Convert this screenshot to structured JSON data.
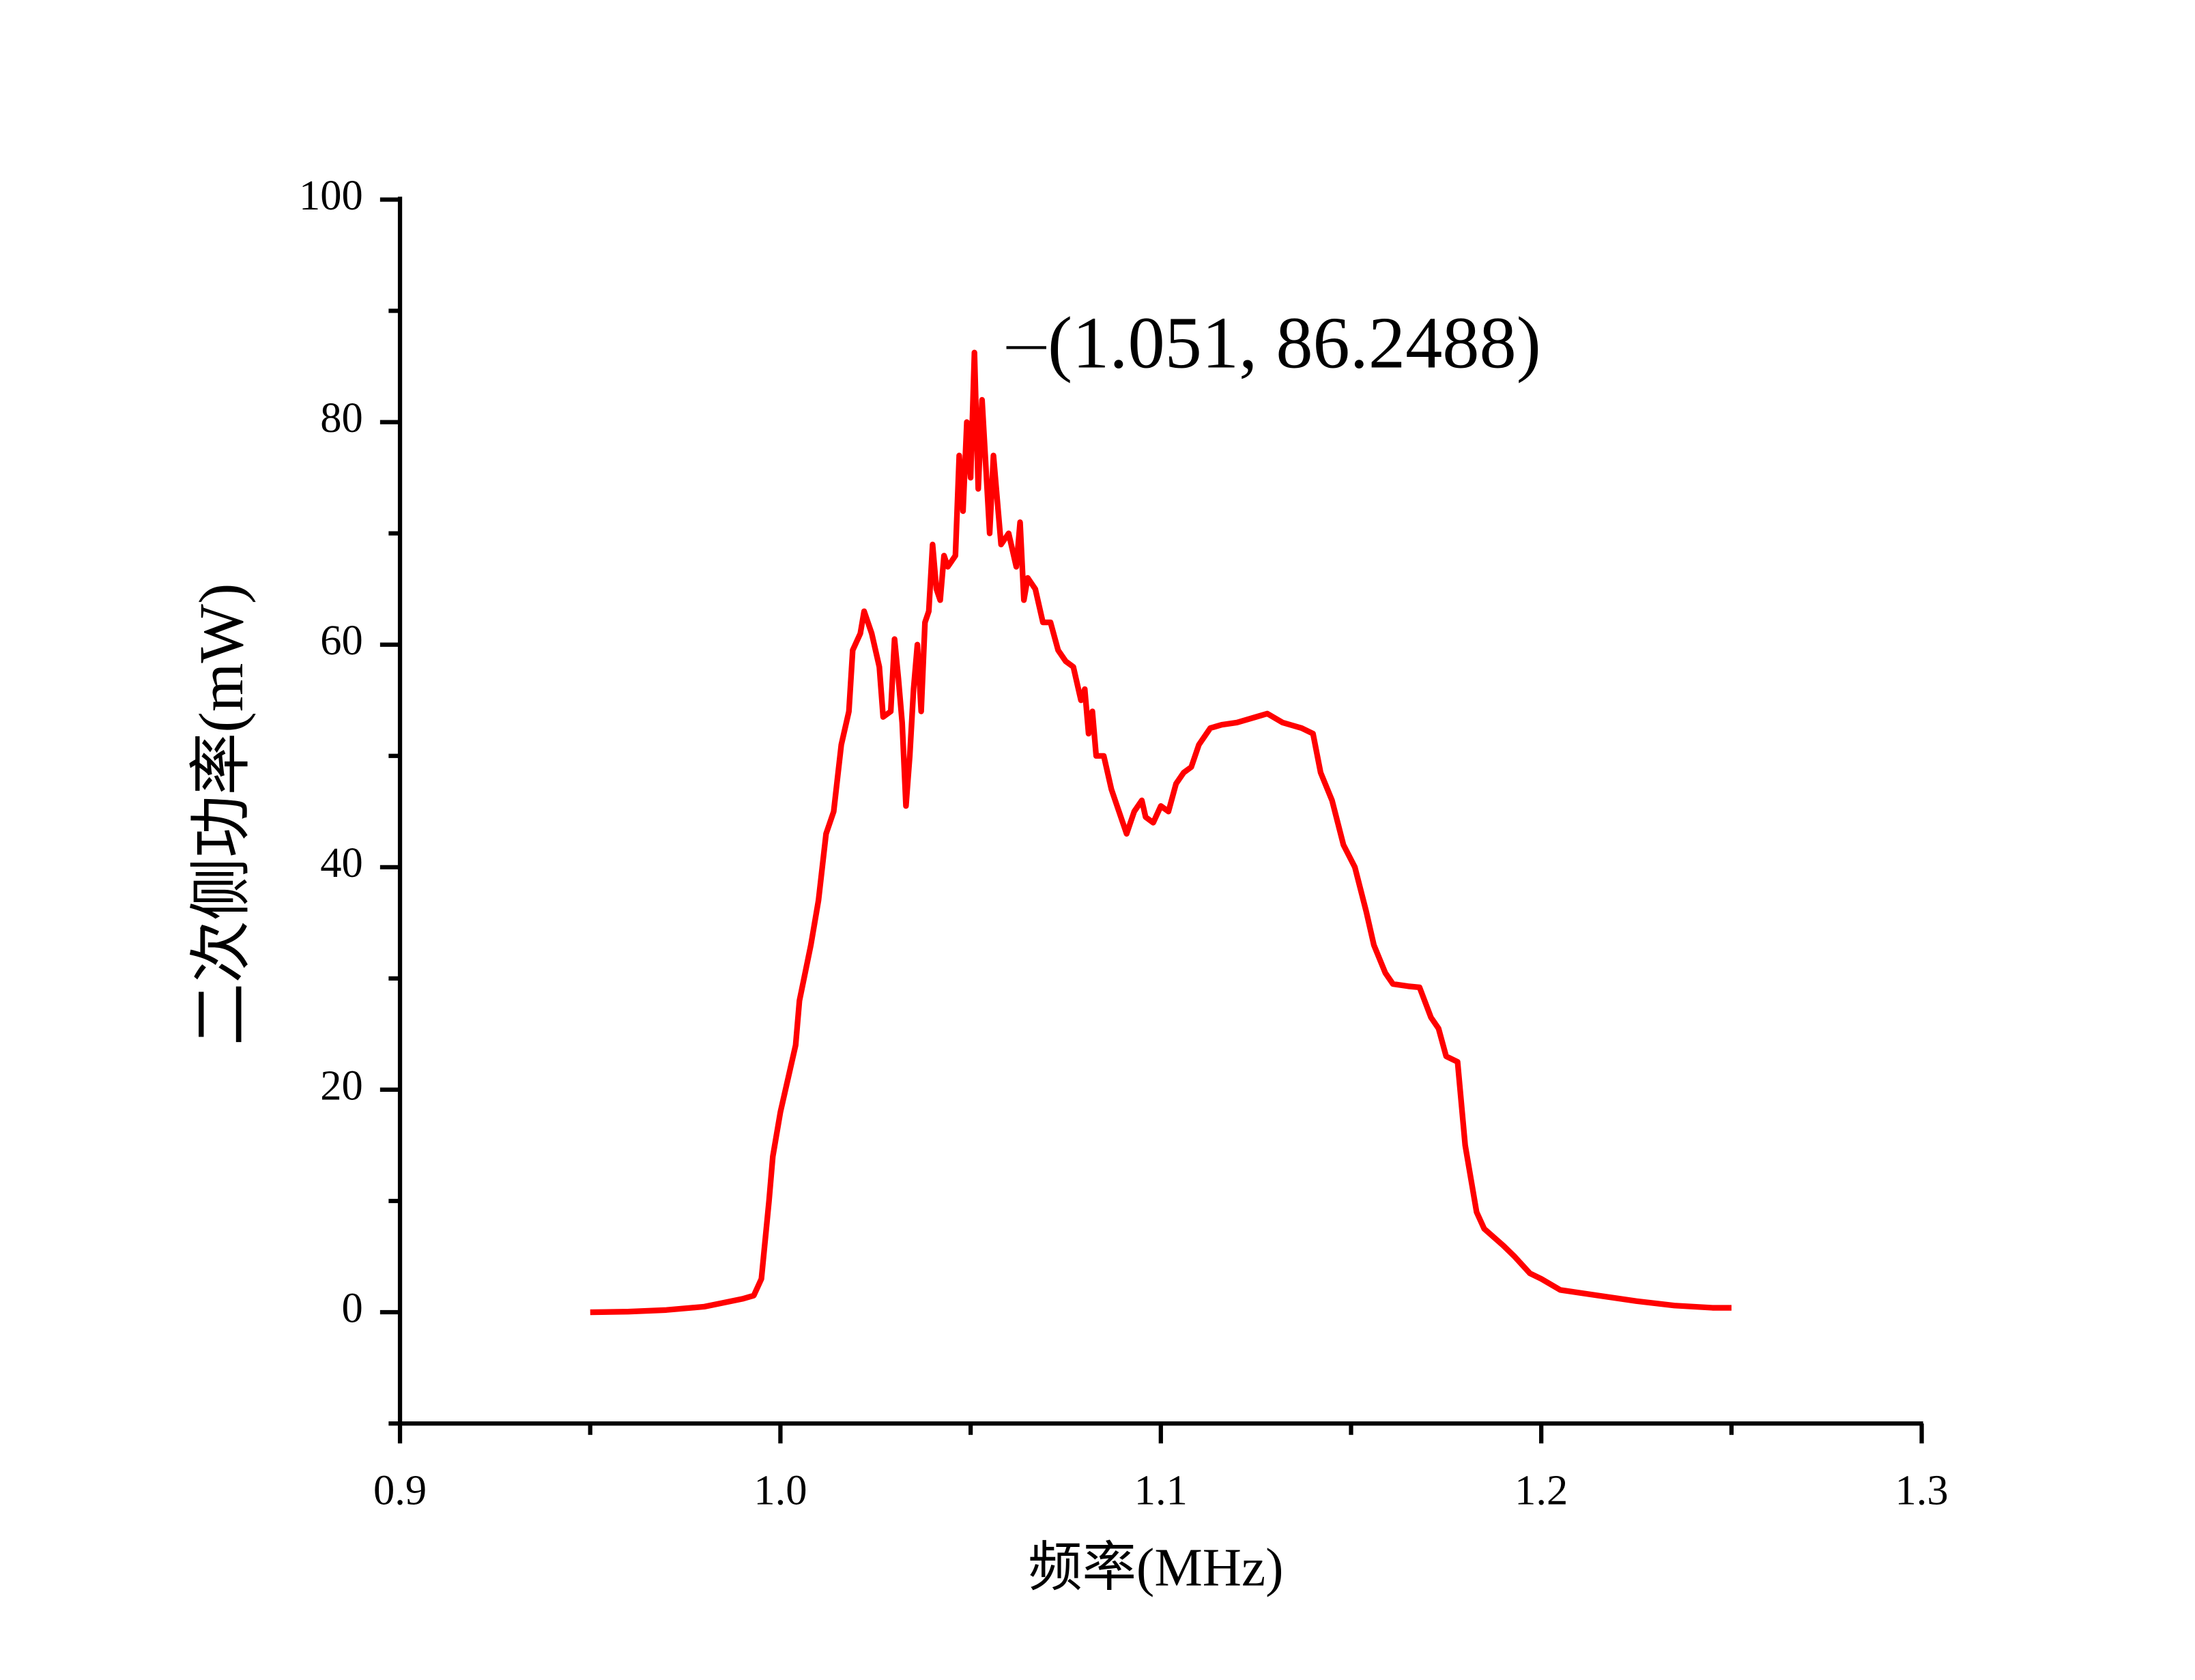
{
  "chart_data": {
    "type": "line",
    "x_label": "频率(MHz)",
    "y_label": "二次侧功率(mW)",
    "annotation": "(1.051, 86.2488)",
    "xlim": [
      0.9,
      1.3
    ],
    "ylim": [
      -10,
      100
    ],
    "xticks": [
      0.9,
      {
        "value": 1,
        "label": "1.0"
      },
      1.1,
      1.2,
      1.3
    ],
    "yticks": [
      0,
      20,
      40,
      60,
      80,
      100
    ],
    "x_minor_ticks": [
      0.95,
      1.05,
      1.15,
      1.25
    ],
    "y_minor_ticks": [
      -10,
      10,
      30,
      50,
      70,
      90
    ],
    "series": [
      {
        "color": "#ff0000",
        "x": [
          0.95,
          0.96,
          0.97,
          0.98,
          0.99,
          0.993,
          0.995,
          0.997,
          0.998,
          1.0,
          1.004,
          1.005,
          1.008,
          1.01,
          1.012,
          1.014,
          1.016,
          1.018,
          1.019,
          1.021,
          1.022,
          1.024,
          1.026,
          1.027,
          1.029,
          1.03,
          1.031,
          1.032,
          1.033,
          1.034,
          1.035,
          1.036,
          1.037,
          1.038,
          1.039,
          1.04,
          1.041,
          1.042,
          1.043,
          1.044,
          1.046,
          1.047,
          1.048,
          1.049,
          1.05,
          1.051,
          1.052,
          1.053,
          1.054,
          1.055,
          1.056,
          1.057,
          1.058,
          1.06,
          1.062,
          1.063,
          1.064,
          1.065,
          1.067,
          1.069,
          1.071,
          1.073,
          1.075,
          1.077,
          1.079,
          1.08,
          1.081,
          1.082,
          1.083,
          1.085,
          1.087,
          1.089,
          1.091,
          1.093,
          1.095,
          1.096,
          1.098,
          1.1,
          1.102,
          1.104,
          1.106,
          1.108,
          1.11,
          1.113,
          1.116,
          1.12,
          1.125,
          1.128,
          1.132,
          1.137,
          1.14,
          1.142,
          1.145,
          1.148,
          1.151,
          1.154,
          1.156,
          1.159,
          1.161,
          1.165,
          1.168,
          1.171,
          1.173,
          1.175,
          1.178,
          1.18,
          1.183,
          1.185,
          1.19,
          1.193,
          1.197,
          1.2,
          1.205,
          1.215,
          1.225,
          1.235,
          1.245,
          1.25
        ],
        "values": [
          0,
          0.05,
          0.2,
          0.5,
          1.2,
          1.5,
          3,
          10,
          14,
          18,
          24,
          28,
          33,
          37,
          43,
          45,
          51,
          54,
          59.5,
          61,
          63,
          61,
          58,
          53.5,
          54,
          60.5,
          57,
          53,
          45.5,
          50,
          56,
          60,
          54,
          62,
          63,
          69,
          65,
          64,
          68,
          67,
          68,
          77,
          72,
          80,
          75,
          86.2488,
          74,
          82,
          76,
          70,
          77,
          73,
          69,
          70,
          67,
          71,
          64,
          66,
          65,
          62,
          62,
          59.5,
          58.5,
          58,
          55,
          56,
          52,
          54,
          50,
          50,
          47,
          45,
          43,
          45,
          46,
          44.5,
          44,
          45.5,
          45,
          47.5,
          48.5,
          49,
          51,
          52.5,
          52.8,
          53,
          53.5,
          53.8,
          53,
          52.5,
          52,
          48.5,
          46,
          42,
          40,
          36,
          33,
          30.5,
          29.5,
          29.3,
          29.2,
          26.5,
          25.5,
          23,
          22.5,
          15,
          9,
          7.5,
          6,
          5,
          3.5,
          3,
          2,
          1.5,
          1,
          0.6,
          0.4,
          0.4
        ]
      }
    ]
  }
}
